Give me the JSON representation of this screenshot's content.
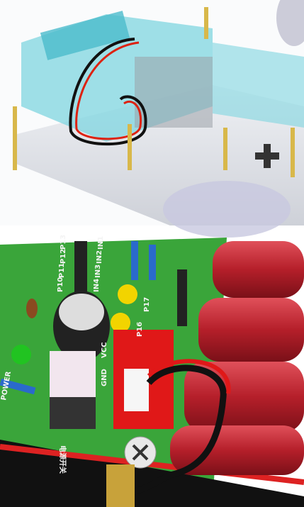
{
  "labels": {
    "pins_left": [
      "P13",
      "P12",
      "P11",
      "P10"
    ],
    "pins_in": [
      "IN1",
      "IN2",
      "IN3",
      "IN4"
    ],
    "power": "POWER",
    "switch": "电源开关",
    "vcc": "VCC",
    "gnd": "GND",
    "led_pins": [
      "P17",
      "P16"
    ]
  }
}
